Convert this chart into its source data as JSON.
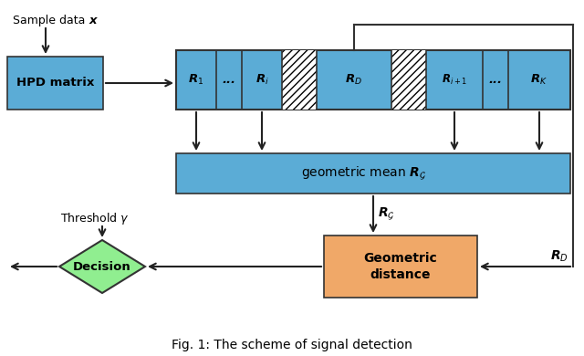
{
  "bg_color": "#ffffff",
  "box_blue": "#5bacd6",
  "box_orange": "#f0a868",
  "box_green": "#90ee90",
  "box_border": "#333333",
  "arrow_color": "#222222",
  "title": "Fig. 1: The scheme of signal detection",
  "hpd_text": "HPD matrix",
  "geom_dist_text1": "Geometric",
  "geom_dist_text2": "distance",
  "decision_text": "Decision",
  "threshold_text": "Threshold $\\gamma$"
}
